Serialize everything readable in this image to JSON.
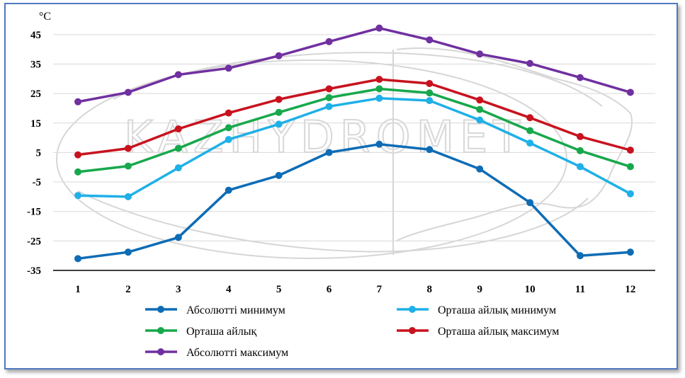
{
  "chart_data": {
    "type": "line",
    "unit_label": "°C",
    "categories": [
      "1",
      "2",
      "3",
      "4",
      "5",
      "6",
      "7",
      "8",
      "9",
      "10",
      "11",
      "12"
    ],
    "y_ticks": [
      "45",
      "35",
      "25",
      "15",
      "5",
      "-5",
      "-15",
      "-25",
      "-35"
    ],
    "ylim": [
      -35,
      50
    ],
    "grid": true,
    "legend_position": "bottom",
    "series": [
      {
        "key": "abs_min",
        "name": "Абсолютті минимум",
        "color": "#0e6cb5",
        "values": [
          -31,
          -28.8,
          -23.8,
          -7.8,
          -2.8,
          5,
          7.8,
          6,
          -0.6,
          -12,
          -30,
          -28.8
        ]
      },
      {
        "key": "avg_min",
        "name": "Орташа айлық минимум",
        "color": "#1fb0e8",
        "values": [
          -9.6,
          -10,
          -0.2,
          9.4,
          14.6,
          20.6,
          23.4,
          22.6,
          16,
          8.2,
          0.2,
          -9
        ]
      },
      {
        "key": "avg",
        "name": "Орташа айлық",
        "color": "#17a84c",
        "values": [
          -1.6,
          0.4,
          6.4,
          13.4,
          18.6,
          23.6,
          26.6,
          25.2,
          19.6,
          12.4,
          5.6,
          0.2
        ]
      },
      {
        "key": "avg_max",
        "name": "Орташа айлық максимум",
        "color": "#c8121e",
        "values": [
          4.2,
          6.4,
          13,
          18.4,
          23,
          26.6,
          29.8,
          28.4,
          22.8,
          16.8,
          10.4,
          5.8
        ]
      },
      {
        "key": "abs_max",
        "name": "Абсолютті максимум",
        "color": "#7030a0",
        "values": [
          22.2,
          25.4,
          31.4,
          33.6,
          37.8,
          42.6,
          47.2,
          43.2,
          38.4,
          35.2,
          30.4,
          25.4
        ]
      }
    ],
    "legend": [
      {
        "series": 0,
        "col": 0,
        "row": 0
      },
      {
        "series": 1,
        "col": 1,
        "row": 0
      },
      {
        "series": 2,
        "col": 0,
        "row": 1
      },
      {
        "series": 3,
        "col": 1,
        "row": 1
      },
      {
        "series": 4,
        "col": 0,
        "row": 2
      }
    ],
    "watermark_text": "KAZHYDROMET"
  }
}
